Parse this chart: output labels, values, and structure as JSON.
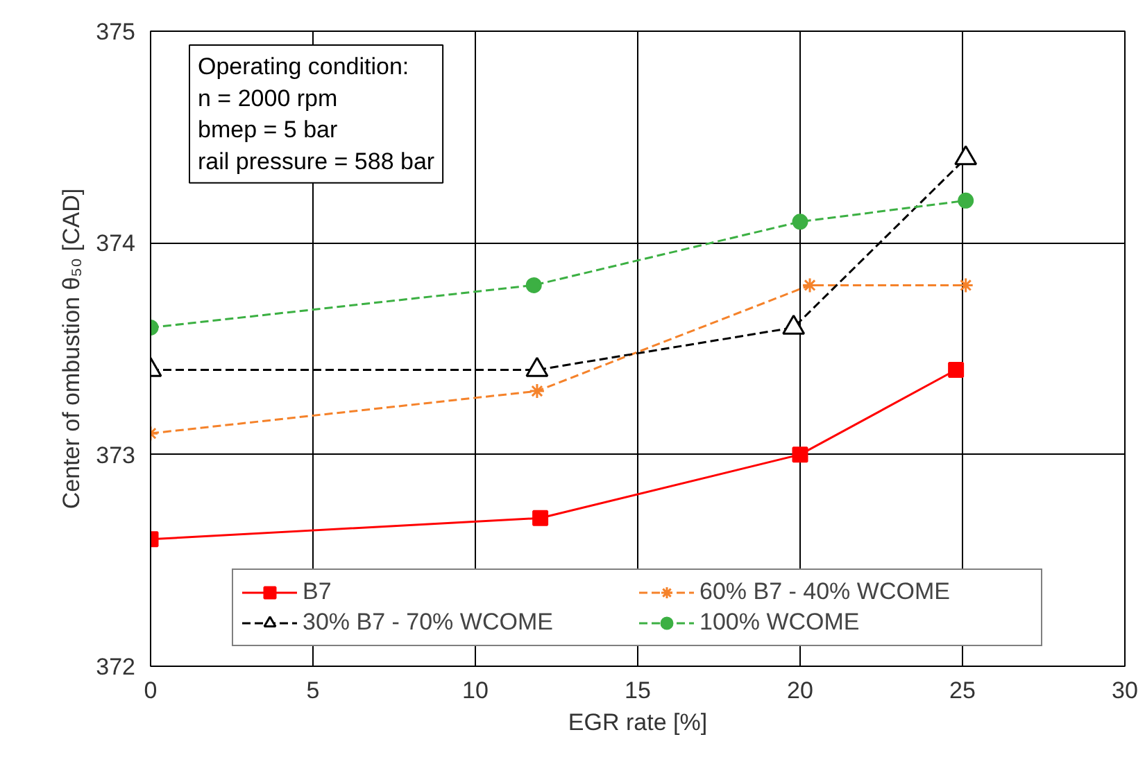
{
  "chart_data": {
    "type": "line",
    "xlabel": "EGR rate [%]",
    "ylabel": "Center of ombustion θ₅₀ [CAD]",
    "xlim": [
      0,
      30
    ],
    "xticks": [
      0,
      5,
      10,
      15,
      20,
      25,
      30
    ],
    "ylim": [
      372,
      375
    ],
    "yticks": [
      372,
      373,
      374,
      375
    ],
    "grid": true,
    "legend": "bottom",
    "annotations": [
      "Operating condition:\nn = 2000 rpm\nbmep = 5 bar\nrail pressure = 588 bar"
    ],
    "series": [
      {
        "name": "B7",
        "color": "#ff0000",
        "marker": "square",
        "line_style": "solid",
        "x": [
          0,
          12,
          20,
          24.8
        ],
        "values": [
          372.6,
          372.7,
          373.0,
          373.4
        ]
      },
      {
        "name": "60% B7 - 40% WCOME",
        "color": "#f5822a",
        "marker": "cross",
        "line_style": "dashed",
        "x": [
          0,
          11.9,
          20.3,
          25.1
        ],
        "values": [
          373.1,
          373.3,
          373.8,
          373.8
        ]
      },
      {
        "name": "30% B7 - 70% WCOME",
        "color": "#000000",
        "marker": "triangle",
        "line_style": "dashed",
        "x": [
          0,
          11.9,
          19.8,
          25.1
        ],
        "values": [
          373.4,
          373.4,
          373.6,
          374.4
        ]
      },
      {
        "name": "100% WCOME",
        "color": "#3cb043",
        "marker": "circle",
        "line_style": "dashed",
        "x": [
          0,
          11.8,
          20,
          25.1
        ],
        "values": [
          373.6,
          373.8,
          374.1,
          374.2
        ]
      }
    ]
  }
}
